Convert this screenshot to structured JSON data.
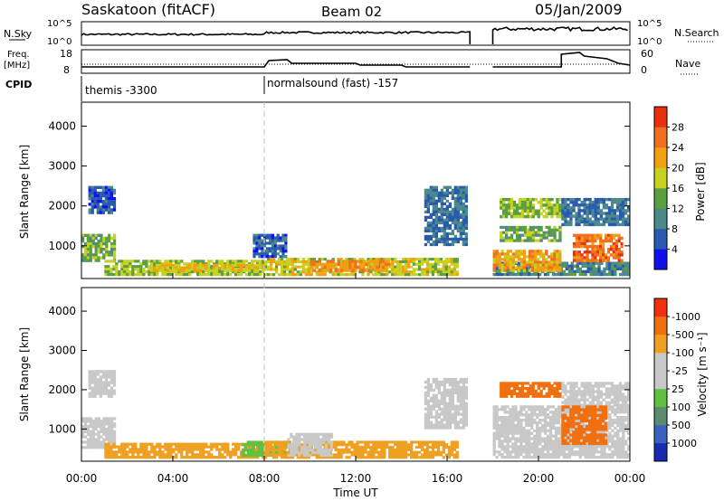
{
  "header": {
    "station": "Saskatoon (fitACF)",
    "beam": "Beam 02",
    "date": "05/Jan/2009"
  },
  "nsky_panel": {
    "left_label": "N.Sky",
    "right_label": "N.Search",
    "ticks": [
      "10^5",
      "10^0"
    ],
    "right_ticks": [
      "10^5",
      "10^0"
    ]
  },
  "freq_panel": {
    "left_label_1": "Freq.",
    "left_label_2": "[MHz]",
    "right_label": "Nave",
    "left_ticks": [
      "18",
      "8"
    ],
    "right_ticks": [
      "60",
      "0"
    ]
  },
  "cpid": {
    "label": "CPID",
    "segments": [
      {
        "text": "themis -3300",
        "start_hour": 0
      },
      {
        "text": "normalsound (fast) -157",
        "start_hour": 8
      }
    ]
  },
  "x_axis": {
    "label": "Time UT",
    "ticks": [
      "00:00",
      "04:00",
      "08:00",
      "12:00",
      "16:00",
      "20:00",
      "00:00"
    ],
    "range_hours": [
      0,
      24
    ]
  },
  "colors": {
    "power_scale": [
      "#1010ee",
      "#2a5ab0",
      "#4a8a88",
      "#5aa040",
      "#c8d020",
      "#f0a010",
      "#f07020",
      "#e83010",
      "#e00000"
    ],
    "velocity_scale": [
      "#e00000",
      "#f03010",
      "#f07010",
      "#f0a020",
      "#c8c8c8",
      "#c8c8c8",
      "#60c040",
      "#5a8a70",
      "#3a60c0",
      "#1a2ab0"
    ]
  },
  "chart_data": [
    {
      "type": "heatmap",
      "panel": "power",
      "ylabel": "Slant Range [km]",
      "xlabel": "",
      "ylim": [
        180,
        4600
      ],
      "xlim": [
        0,
        24
      ],
      "yticks": [
        1000,
        2000,
        3000,
        4000
      ],
      "colorbar": {
        "label": "Power [dB]",
        "ticks": [
          4,
          8,
          12,
          16,
          20,
          24,
          28
        ]
      },
      "bands": [
        {
          "t0": 0.0,
          "t1": 1.5,
          "r0": 600,
          "r1": 1300,
          "v": 14
        },
        {
          "t0": 0.3,
          "t1": 1.5,
          "r0": 1800,
          "r1": 2500,
          "v": 6
        },
        {
          "t0": 1.0,
          "t1": 8.0,
          "r0": 250,
          "r1": 650,
          "v": 16
        },
        {
          "t0": 3.0,
          "t1": 8.0,
          "r0": 350,
          "r1": 550,
          "v": 20
        },
        {
          "t0": 7.5,
          "t1": 9.0,
          "r0": 700,
          "r1": 1300,
          "v": 6
        },
        {
          "t0": 8.0,
          "t1": 16.5,
          "r0": 250,
          "r1": 700,
          "v": 18
        },
        {
          "t0": 10.0,
          "t1": 13.5,
          "r0": 350,
          "r1": 650,
          "v": 24
        },
        {
          "t0": 15.0,
          "t1": 16.9,
          "r0": 1000,
          "r1": 2500,
          "v": 8
        },
        {
          "t0": 18.0,
          "t1": 24.0,
          "r0": 250,
          "r1": 600,
          "v": 10
        },
        {
          "t0": 18.0,
          "t1": 21.0,
          "r0": 350,
          "r1": 900,
          "v": 22
        },
        {
          "t0": 18.3,
          "t1": 21.0,
          "r0": 1700,
          "r1": 2200,
          "v": 16
        },
        {
          "t0": 18.3,
          "t1": 21.0,
          "r0": 1100,
          "r1": 1500,
          "v": 14
        },
        {
          "t0": 21.0,
          "t1": 24.0,
          "r0": 1500,
          "r1": 2200,
          "v": 8
        },
        {
          "t0": 21.5,
          "t1": 23.7,
          "r0": 600,
          "r1": 1300,
          "v": 26
        }
      ]
    },
    {
      "type": "heatmap",
      "panel": "velocity",
      "ylabel": "Slant Range [km]",
      "xlabel": "Time UT",
      "ylim": [
        180,
        4600
      ],
      "xlim": [
        0,
        24
      ],
      "yticks": [
        1000,
        2000,
        3000,
        4000
      ],
      "colorbar": {
        "label": "Velocity [m s⁻¹]",
        "ticks": [
          1000,
          500,
          100,
          25,
          -25,
          -100,
          -500,
          -1000
        ]
      },
      "bands": [
        {
          "t0": 0.0,
          "t1": 1.5,
          "r0": 500,
          "r1": 1300,
          "v": 0
        },
        {
          "t0": 0.3,
          "t1": 1.5,
          "r0": 1800,
          "r1": 2500,
          "v": 0
        },
        {
          "t0": 1.0,
          "t1": 8.0,
          "r0": 250,
          "r1": 650,
          "v": -60
        },
        {
          "t0": 7.0,
          "t1": 9.0,
          "r0": 300,
          "r1": 700,
          "v": 60
        },
        {
          "t0": 8.0,
          "t1": 16.5,
          "r0": 250,
          "r1": 700,
          "v": -70
        },
        {
          "t0": 9.0,
          "t1": 11.0,
          "r0": 300,
          "r1": 900,
          "v": 0
        },
        {
          "t0": 15.0,
          "t1": 16.9,
          "r0": 1000,
          "r1": 2300,
          "v": 0
        },
        {
          "t0": 18.0,
          "t1": 24.0,
          "r0": 250,
          "r1": 1600,
          "v": 0
        },
        {
          "t0": 18.3,
          "t1": 21.0,
          "r0": 1800,
          "r1": 2200,
          "v": -200
        },
        {
          "t0": 21.0,
          "t1": 24.0,
          "r0": 1500,
          "r1": 2200,
          "v": 0
        },
        {
          "t0": 21.0,
          "t1": 23.0,
          "r0": 600,
          "r1": 1600,
          "v": -150
        }
      ]
    }
  ]
}
